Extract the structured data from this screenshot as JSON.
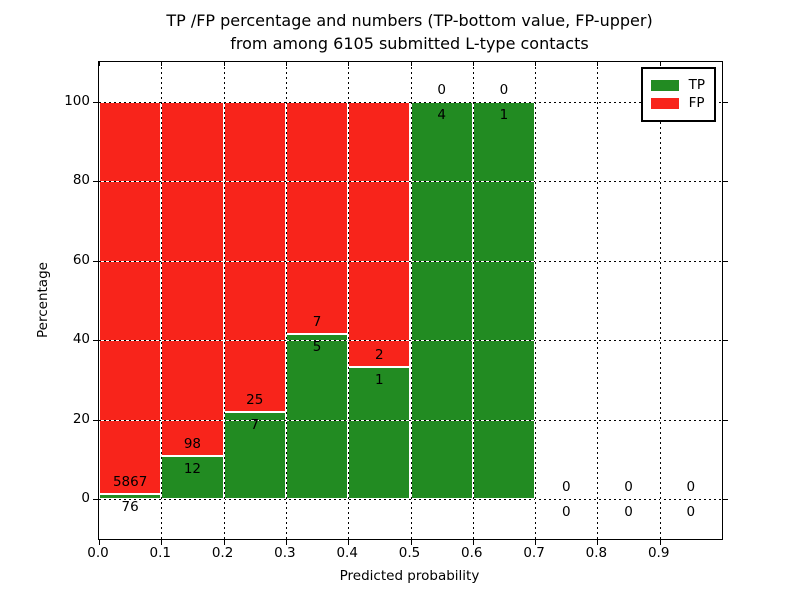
{
  "chart_data": {
    "type": "bar",
    "stacked": true,
    "title_line1": "TP /FP percentage and numbers (TP-bottom value, FP-upper)",
    "title_line2": "from among 6105 submitted L-type contacts",
    "total_submitted": "6105",
    "xlabel": "Predicted probability",
    "ylabel": "Percentage",
    "x_tick_labels": [
      "0.0",
      "0.1",
      "0.2",
      "0.3",
      "0.4",
      "0.5",
      "0.6",
      "0.7",
      "0.8",
      "0.9"
    ],
    "y_tick_labels": [
      "0",
      "20",
      "40",
      "60",
      "80",
      "100"
    ],
    "y_ticks": [
      0,
      20,
      40,
      60,
      80,
      100
    ],
    "xlim": [
      0.0,
      1.0
    ],
    "ylim_pct": [
      -10,
      110
    ],
    "grid": "dotted black, horizontal and vertical, drawn over bars",
    "legend_position": "upper right",
    "legend": [
      {
        "label": "TP",
        "color": "#228b22"
      },
      {
        "label": "FP",
        "color": "#f8241b"
      }
    ],
    "bar_edge_color": "#ffffff",
    "bins": [
      {
        "x0": "0.0",
        "x1": "0.1",
        "tp": "76",
        "fp": "5867",
        "tp_pct": 1.28
      },
      {
        "x0": "0.1",
        "x1": "0.2",
        "tp": "12",
        "fp": "98",
        "tp_pct": 10.91
      },
      {
        "x0": "0.2",
        "x1": "0.3",
        "tp": "7",
        "fp": "25",
        "tp_pct": 21.88
      },
      {
        "x0": "0.3",
        "x1": "0.4",
        "tp": "5",
        "fp": "7",
        "tp_pct": 41.67
      },
      {
        "x0": "0.4",
        "x1": "0.5",
        "tp": "1",
        "fp": "2",
        "tp_pct": 33.33
      },
      {
        "x0": "0.5",
        "x1": "0.6",
        "tp": "4",
        "fp": "0",
        "tp_pct": 100
      },
      {
        "x0": "0.6",
        "x1": "0.7",
        "tp": "1",
        "fp": "0",
        "tp_pct": 100
      },
      {
        "x0": "0.7",
        "x1": "0.8",
        "tp": "0",
        "fp": "0",
        "tp_pct": null
      },
      {
        "x0": "0.8",
        "x1": "0.9",
        "tp": "0",
        "fp": "0",
        "tp_pct": null
      },
      {
        "x0": "0.9",
        "x1": "1.0",
        "tp": "0",
        "fp": "0",
        "tp_pct": null
      }
    ]
  }
}
